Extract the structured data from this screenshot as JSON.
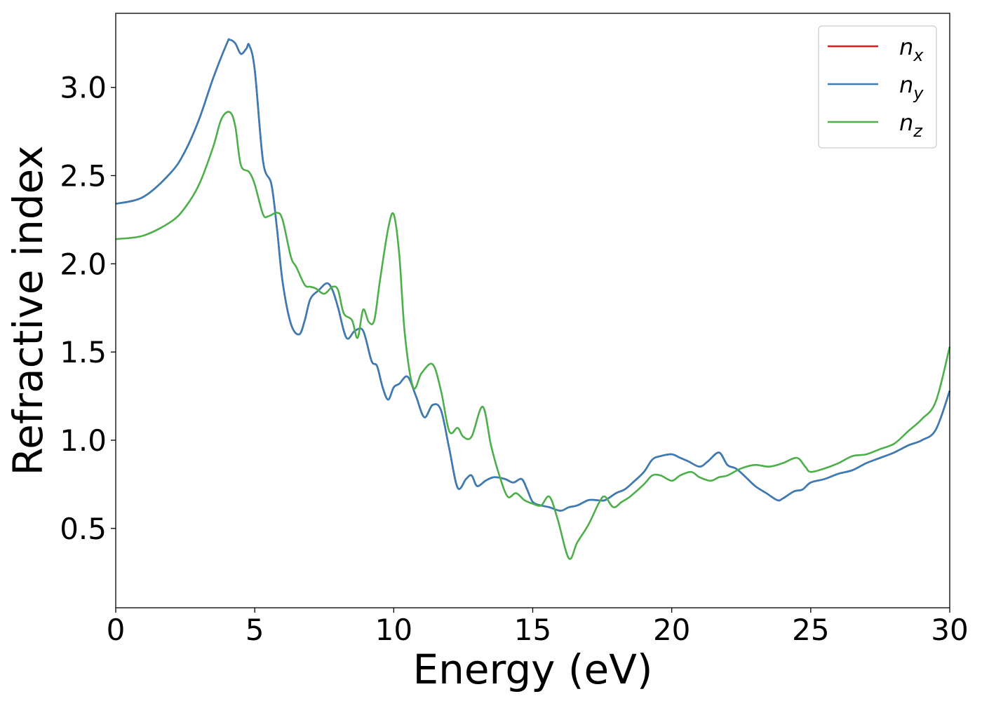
{
  "chart_data": {
    "type": "line",
    "title": "",
    "xlabel": "Energy (eV)",
    "ylabel": "Refractive index",
    "xlim": [
      0,
      30
    ],
    "ylim": [
      0.05,
      3.42
    ],
    "xticks": [
      0,
      5,
      10,
      15,
      20,
      25,
      30
    ],
    "xtick_labels": [
      "0",
      "5",
      "10",
      "15",
      "20",
      "25",
      "30"
    ],
    "yticks": [
      0.5,
      1.0,
      1.5,
      2.0,
      2.5,
      3.0
    ],
    "ytick_labels": [
      "0.5",
      "1.0",
      "1.5",
      "2.0",
      "2.5",
      "3.0"
    ],
    "grid": false,
    "legend_position": "top-right",
    "legend": [
      {
        "base": "n",
        "sub": "x",
        "color": "#e41a1c"
      },
      {
        "base": "n",
        "sub": "y",
        "color": "#377eb8"
      },
      {
        "base": "n",
        "sub": "z",
        "color": "#4daf4a"
      }
    ],
    "series": [
      {
        "key": "nx",
        "color": "#e41a1c",
        "x": [
          0,
          1,
          2,
          2.5,
          3,
          3.5,
          4,
          4.1,
          4.3,
          4.5,
          4.7,
          4.8,
          5,
          5.3,
          5.6,
          5.8,
          6,
          6.3,
          6.6,
          6.8,
          7,
          7.3,
          7.6,
          7.8,
          8,
          8.3,
          8.6,
          8.9,
          9.2,
          9.4,
          9.6,
          9.8,
          10,
          10.2,
          10.5,
          10.8,
          11.1,
          11.4,
          11.7,
          12,
          12.3,
          12.6,
          12.8,
          13,
          13.3,
          13.6,
          14,
          14.3,
          14.6,
          14.8,
          15,
          15.3,
          15.6,
          16,
          16.3,
          16.6,
          17,
          17.3,
          17.6,
          18,
          18.3,
          18.6,
          19,
          19.3,
          19.6,
          20,
          20.3,
          20.6,
          21,
          21.3,
          21.7,
          22,
          22.3,
          22.6,
          23,
          23.4,
          23.8,
          24,
          24.4,
          24.7,
          25,
          25.5,
          26,
          26.5,
          27,
          27.5,
          28,
          28.5,
          29,
          29.5,
          30
        ],
        "y": [
          2.34,
          2.38,
          2.52,
          2.64,
          2.82,
          3.05,
          3.25,
          3.27,
          3.25,
          3.19,
          3.22,
          3.24,
          3.1,
          2.58,
          2.45,
          2.2,
          1.9,
          1.66,
          1.6,
          1.68,
          1.8,
          1.85,
          1.89,
          1.85,
          1.75,
          1.58,
          1.62,
          1.62,
          1.45,
          1.42,
          1.3,
          1.23,
          1.3,
          1.32,
          1.36,
          1.25,
          1.13,
          1.2,
          1.17,
          0.95,
          0.73,
          0.78,
          0.8,
          0.74,
          0.77,
          0.79,
          0.78,
          0.76,
          0.78,
          0.72,
          0.65,
          0.63,
          0.62,
          0.6,
          0.62,
          0.63,
          0.66,
          0.66,
          0.66,
          0.7,
          0.72,
          0.76,
          0.82,
          0.89,
          0.91,
          0.92,
          0.9,
          0.88,
          0.85,
          0.88,
          0.93,
          0.86,
          0.84,
          0.8,
          0.74,
          0.7,
          0.66,
          0.67,
          0.71,
          0.72,
          0.76,
          0.78,
          0.81,
          0.83,
          0.87,
          0.9,
          0.93,
          0.97,
          1.0,
          1.06,
          1.28
        ]
      },
      {
        "key": "ny",
        "color": "#377eb8",
        "x": [
          0,
          1,
          2,
          2.5,
          3,
          3.5,
          4,
          4.1,
          4.3,
          4.5,
          4.7,
          4.8,
          5,
          5.3,
          5.6,
          5.8,
          6,
          6.3,
          6.6,
          6.8,
          7,
          7.3,
          7.6,
          7.8,
          8,
          8.3,
          8.6,
          8.9,
          9.2,
          9.4,
          9.6,
          9.8,
          10,
          10.2,
          10.5,
          10.8,
          11.1,
          11.4,
          11.7,
          12,
          12.3,
          12.6,
          12.8,
          13,
          13.3,
          13.6,
          14,
          14.3,
          14.6,
          14.8,
          15,
          15.3,
          15.6,
          16,
          16.3,
          16.6,
          17,
          17.3,
          17.6,
          18,
          18.3,
          18.6,
          19,
          19.3,
          19.6,
          20,
          20.3,
          20.6,
          21,
          21.3,
          21.7,
          22,
          22.3,
          22.6,
          23,
          23.4,
          23.8,
          24,
          24.4,
          24.7,
          25,
          25.5,
          26,
          26.5,
          27,
          27.5,
          28,
          28.5,
          29,
          29.5,
          30
        ],
        "y": [
          2.34,
          2.38,
          2.52,
          2.64,
          2.82,
          3.05,
          3.25,
          3.27,
          3.25,
          3.19,
          3.22,
          3.24,
          3.1,
          2.58,
          2.45,
          2.2,
          1.9,
          1.66,
          1.6,
          1.68,
          1.8,
          1.85,
          1.89,
          1.85,
          1.75,
          1.58,
          1.62,
          1.62,
          1.45,
          1.42,
          1.3,
          1.23,
          1.3,
          1.32,
          1.36,
          1.25,
          1.13,
          1.2,
          1.17,
          0.95,
          0.73,
          0.78,
          0.8,
          0.74,
          0.77,
          0.79,
          0.78,
          0.76,
          0.78,
          0.72,
          0.65,
          0.63,
          0.62,
          0.6,
          0.62,
          0.63,
          0.66,
          0.66,
          0.66,
          0.7,
          0.72,
          0.76,
          0.82,
          0.89,
          0.91,
          0.92,
          0.9,
          0.88,
          0.85,
          0.88,
          0.93,
          0.86,
          0.84,
          0.8,
          0.74,
          0.7,
          0.66,
          0.67,
          0.71,
          0.72,
          0.76,
          0.78,
          0.81,
          0.83,
          0.87,
          0.9,
          0.93,
          0.97,
          1.0,
          1.06,
          1.28
        ]
      },
      {
        "key": "nz",
        "color": "#4daf4a",
        "x": [
          0,
          1,
          2,
          2.5,
          3,
          3.5,
          3.8,
          4.1,
          4.3,
          4.5,
          4.8,
          5,
          5.3,
          5.5,
          5.8,
          6,
          6.3,
          6.5,
          6.8,
          7,
          7.2,
          7.5,
          7.8,
          8,
          8.2,
          8.5,
          8.7,
          8.9,
          9.1,
          9.3,
          9.5,
          9.8,
          10,
          10.2,
          10.4,
          10.7,
          11,
          11.4,
          11.7,
          12,
          12.3,
          12.5,
          12.8,
          13.2,
          13.5,
          13.8,
          14.1,
          14.4,
          14.7,
          15,
          15.3,
          15.6,
          15.9,
          16.3,
          16.6,
          17,
          17.4,
          17.6,
          17.9,
          18.2,
          18.5,
          19,
          19.3,
          19.6,
          20,
          20.3,
          20.7,
          21,
          21.4,
          21.7,
          22,
          22.5,
          23,
          23.5,
          24,
          24.5,
          24.8,
          25,
          25.5,
          26,
          26.5,
          27,
          27.5,
          28,
          28.5,
          29,
          29.5,
          30
        ],
        "y": [
          2.14,
          2.16,
          2.24,
          2.32,
          2.45,
          2.66,
          2.82,
          2.86,
          2.78,
          2.56,
          2.52,
          2.45,
          2.28,
          2.27,
          2.29,
          2.25,
          2.04,
          1.98,
          1.88,
          1.87,
          1.86,
          1.83,
          1.87,
          1.85,
          1.72,
          1.68,
          1.58,
          1.74,
          1.67,
          1.68,
          1.9,
          2.2,
          2.28,
          2.05,
          1.6,
          1.3,
          1.38,
          1.43,
          1.28,
          1.05,
          1.07,
          1.02,
          1.02,
          1.19,
          0.97,
          0.8,
          0.68,
          0.7,
          0.66,
          0.64,
          0.63,
          0.68,
          0.55,
          0.33,
          0.42,
          0.52,
          0.65,
          0.68,
          0.62,
          0.65,
          0.68,
          0.75,
          0.8,
          0.8,
          0.77,
          0.8,
          0.82,
          0.79,
          0.77,
          0.79,
          0.8,
          0.84,
          0.86,
          0.85,
          0.87,
          0.9,
          0.85,
          0.82,
          0.84,
          0.87,
          0.91,
          0.92,
          0.95,
          0.98,
          1.05,
          1.12,
          1.22,
          1.53
        ]
      }
    ]
  }
}
